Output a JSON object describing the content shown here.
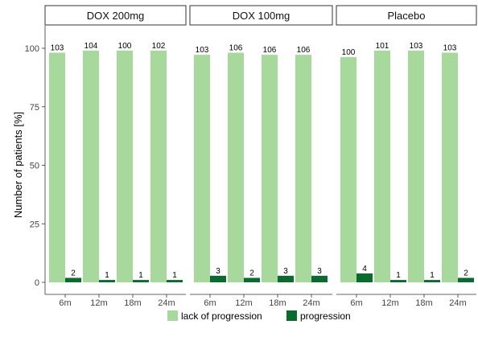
{
  "chart_data": {
    "type": "bar",
    "ylabel": "Number of patients [%]",
    "xlabel": "",
    "ylim": [
      0,
      110
    ],
    "yticks": [
      0,
      25,
      50,
      75,
      100
    ],
    "grid": false,
    "legend_position": "bottom",
    "categories": [
      "6m",
      "12m",
      "18m",
      "24m"
    ],
    "series_names": [
      "lack of progression",
      "progression"
    ],
    "colors": {
      "lack of progression": "#a6d99b",
      "progression": "#0b6b2f"
    },
    "panels": [
      {
        "title": "DOX 200mg",
        "series": [
          {
            "name": "lack of progression",
            "values": [
              98.1,
              99.0,
              99.0,
              99.0
            ],
            "labels": [
              "103",
              "104",
              "100",
              "102"
            ]
          },
          {
            "name": "progression",
            "values": [
              1.9,
              1.0,
              1.0,
              1.0
            ],
            "labels": [
              "2",
              "1",
              "1",
              "1"
            ]
          }
        ]
      },
      {
        "title": "DOX 100mg",
        "series": [
          {
            "name": "lack of progression",
            "values": [
              97.2,
              98.1,
              97.2,
              97.2
            ],
            "labels": [
              "103",
              "106",
              "106",
              "106"
            ]
          },
          {
            "name": "progression",
            "values": [
              2.8,
              1.9,
              2.8,
              2.8
            ],
            "labels": [
              "3",
              "2",
              "3",
              "3"
            ]
          }
        ]
      },
      {
        "title": "Placebo",
        "series": [
          {
            "name": "lack of progression",
            "values": [
              96.2,
              99.0,
              99.0,
              98.1
            ],
            "labels": [
              "100",
              "101",
              "103",
              "103"
            ]
          },
          {
            "name": "progression",
            "values": [
              3.8,
              1.0,
              1.0,
              1.9
            ],
            "labels": [
              "4",
              "1",
              "1",
              "2"
            ]
          }
        ]
      }
    ]
  }
}
